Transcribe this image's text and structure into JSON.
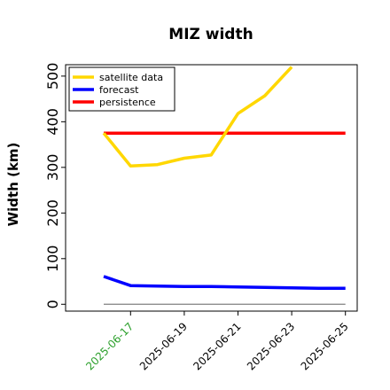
{
  "chart_data": {
    "type": "line",
    "title": "MIZ width",
    "xlabel": "",
    "ylabel": "Width (km)",
    "x": [
      "2025-06-16",
      "2025-06-17",
      "2025-06-18",
      "2025-06-19",
      "2025-06-20",
      "2025-06-21",
      "2025-06-22",
      "2025-06-23",
      "2025-06-24",
      "2025-06-25"
    ],
    "x_ticks": [
      "2025-06-17",
      "2025-06-19",
      "2025-06-21",
      "2025-06-23",
      "2025-06-25"
    ],
    "x_tick_colors": [
      "#2ca02c",
      "#000000",
      "#000000",
      "#000000",
      "#000000"
    ],
    "ylim": [
      -15,
      525
    ],
    "y_ticks": [
      0,
      100,
      200,
      300,
      400,
      500
    ],
    "grid": false,
    "legend_position": "top-left",
    "series": [
      {
        "name": "satellite data",
        "color": "#FFD700",
        "values": [
          375,
          303,
          306,
          320,
          327,
          418,
          457,
          520,
          null,
          null
        ]
      },
      {
        "name": "forecast",
        "color": "#0000FF",
        "values": [
          61,
          41,
          40,
          39,
          39,
          38,
          37,
          36,
          35,
          35
        ]
      },
      {
        "name": "persistence",
        "color": "#FF0000",
        "values": [
          375,
          375,
          375,
          375,
          375,
          375,
          375,
          375,
          375,
          375
        ]
      }
    ],
    "reference_line": {
      "value": 0,
      "color": "#808080"
    }
  }
}
